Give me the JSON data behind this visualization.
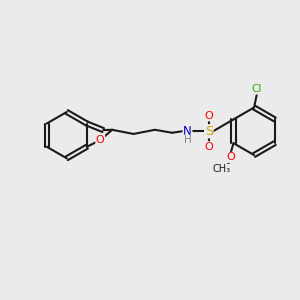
{
  "background_color": "#ebebeb",
  "bond_color": "#1a1a1a",
  "bond_width": 1.5,
  "atom_colors": {
    "O": "#ff0000",
    "N": "#0000cc",
    "S": "#ccaa00",
    "Cl": "#33aa00",
    "C": "#1a1a1a",
    "H": "#888888"
  },
  "figsize": [
    3.0,
    3.0
  ],
  "dpi": 100
}
